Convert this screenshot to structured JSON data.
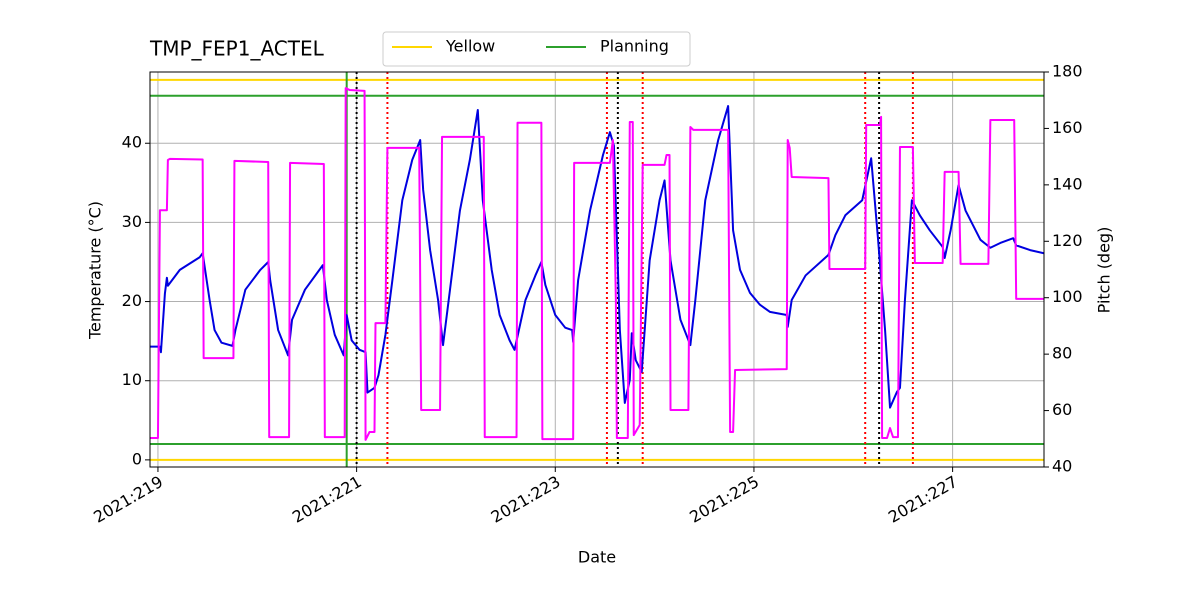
{
  "chart_data": {
    "type": "line",
    "title": "TMP_FEP1_ACTEL",
    "xlabel": "Date",
    "ylabel": "Temperature (°C)",
    "y2label": "Pitch (deg)",
    "y2color": "#ff00ff",
    "xlim": [
      218.92,
      227.92
    ],
    "xticks": [
      {
        "value": 219,
        "label": "2021:219"
      },
      {
        "value": 221,
        "label": "2021:221"
      },
      {
        "value": 223,
        "label": "2021:223"
      },
      {
        "value": 225,
        "label": "2021:225"
      },
      {
        "value": 227,
        "label": "2021:227"
      }
    ],
    "ylim": [
      -0.9,
      49
    ],
    "yticks": [
      0,
      10,
      20,
      30,
      40
    ],
    "y2lim": [
      40,
      180
    ],
    "y2ticks": [
      40,
      60,
      80,
      100,
      120,
      140,
      160,
      180
    ],
    "grid": true,
    "legend": "above",
    "series": [
      {
        "color": "#0000e0",
        "axis": "y",
        "x": [
          218.92,
          219.02,
          219.03,
          219.07,
          219.09,
          219.1,
          219.22,
          219.42,
          219.45,
          219.52,
          219.57,
          219.64,
          219.75,
          219.78,
          219.88,
          220.03,
          220.11,
          220.13,
          220.21,
          220.31,
          220.35,
          220.48,
          220.66,
          220.7,
          220.78,
          220.87,
          220.9,
          220.95,
          221.03,
          221.09,
          221.11,
          221.18,
          221.22,
          221.29,
          221.36,
          221.46,
          221.56,
          221.64,
          221.67,
          221.74,
          221.82,
          221.87,
          221.94,
          222.04,
          222.14,
          222.22,
          222.27,
          222.36,
          222.44,
          222.54,
          222.59,
          222.7,
          222.8,
          222.86,
          222.9,
          223.0,
          223.1,
          223.17,
          223.18,
          223.23,
          223.35,
          223.48,
          223.55,
          223.59,
          223.65,
          223.7,
          223.75,
          223.77,
          223.81,
          223.87,
          223.95,
          224.05,
          224.1,
          224.16,
          224.26,
          224.36,
          224.41,
          224.51,
          224.64,
          224.74,
          224.79,
          224.86,
          224.96,
          225.06,
          225.16,
          225.33,
          225.34,
          225.38,
          225.52,
          225.75,
          225.82,
          225.92,
          226.09,
          226.18,
          226.25,
          226.32,
          226.37,
          226.44,
          226.47,
          226.52,
          226.59,
          226.67,
          226.77,
          226.9,
          226.92,
          226.98,
          227.06,
          227.13,
          227.28,
          227.38,
          227.48,
          227.61,
          227.64,
          227.78,
          227.92
        ],
        "values": [
          14.3,
          14.3,
          13.6,
          21,
          23,
          22,
          24,
          25.6,
          26.1,
          20.2,
          16.4,
          14.8,
          14.4,
          16.4,
          21.5,
          24,
          25,
          22.7,
          16.4,
          13.2,
          17.7,
          21.5,
          24.6,
          20.2,
          15.8,
          13.2,
          18.3,
          15.1,
          13.9,
          13.6,
          8.5,
          9.1,
          10.7,
          15.8,
          22.7,
          32.8,
          37.9,
          40.4,
          34.1,
          26.5,
          20.2,
          14.5,
          21.5,
          31.5,
          37.9,
          44.2,
          32.8,
          24,
          18.3,
          15.1,
          13.9,
          20.2,
          23.3,
          25,
          22.1,
          18.3,
          16.7,
          16.4,
          14.9,
          22.7,
          31.5,
          38.5,
          41.4,
          39.7,
          16.4,
          7.2,
          10.1,
          16,
          12.6,
          11.1,
          25.2,
          32.8,
          35.3,
          25.2,
          17.7,
          14.5,
          20.2,
          32.8,
          40.4,
          44.7,
          29,
          24,
          21.1,
          19.6,
          18.7,
          18.3,
          16.8,
          20.2,
          23.3,
          25.9,
          28.4,
          30.9,
          32.8,
          38.1,
          27.8,
          16.4,
          6.6,
          8.6,
          9.1,
          20.2,
          32.8,
          30.9,
          29,
          26.9,
          25.5,
          29,
          34.7,
          31.5,
          27.8,
          26.8,
          27.4,
          28,
          27.1,
          26.5,
          26.1
        ]
      },
      {
        "color": "#ff00ff",
        "axis": "y2",
        "x": [
          218.92,
          219.0,
          219.02,
          219.09,
          219.1,
          219.12,
          219.45,
          219.46,
          219.76,
          219.77,
          220.11,
          220.12,
          220.32,
          220.33,
          220.67,
          220.68,
          220.88,
          220.89,
          220.93,
          221.08,
          221.09,
          221.13,
          221.18,
          221.19,
          221.29,
          221.31,
          221.63,
          221.65,
          221.84,
          221.86,
          222.28,
          222.29,
          222.61,
          222.62,
          222.86,
          222.87,
          223.18,
          223.19,
          223.55,
          223.58,
          223.61,
          223.62,
          223.73,
          223.75,
          223.78,
          223.79,
          223.85,
          223.88,
          224.1,
          224.12,
          224.15,
          224.16,
          224.34,
          224.36,
          224.39,
          224.74,
          224.76,
          224.79,
          224.81,
          225.33,
          225.34,
          225.36,
          225.38,
          225.75,
          225.76,
          226.12,
          226.13,
          226.27,
          226.28,
          226.29,
          226.34,
          226.37,
          226.4,
          226.45,
          226.47,
          226.6,
          226.62,
          226.9,
          226.92,
          227.06,
          227.08,
          227.36,
          227.38,
          227.62,
          227.64,
          227.92
        ],
        "values": [
          50.3,
          50.3,
          131,
          131,
          148.8,
          149.2,
          149,
          78.6,
          78.6,
          148.5,
          148.1,
          50.6,
          50.6,
          147.8,
          147.4,
          50.6,
          50.6,
          174.3,
          173.6,
          173.3,
          49.6,
          52.4,
          52.4,
          91,
          91,
          153.1,
          153.1,
          60.2,
          60.2,
          157,
          157,
          50.6,
          50.6,
          162,
          162,
          49.9,
          49.9,
          147.8,
          147.8,
          155.9,
          99.2,
          50.3,
          50.3,
          162.3,
          162.3,
          51.3,
          54.9,
          147.1,
          147.1,
          150.6,
          150.6,
          60.2,
          60.2,
          160.5,
          159.5,
          159.5,
          52.4,
          52.4,
          74.4,
          74.7,
          155.9,
          153.1,
          142.8,
          142.4,
          110.2,
          110.2,
          161.2,
          161.2,
          164.1,
          50.3,
          50.3,
          53.8,
          50.6,
          50.6,
          153.4,
          153.4,
          112.3,
          112.3,
          144.6,
          144.6,
          112,
          112,
          163,
          163,
          99.6,
          99.6
        ]
      }
    ],
    "hlines": [
      {
        "name": "Yellow",
        "color": "#ffd700",
        "values": [
          0,
          48
        ]
      },
      {
        "name": "Planning",
        "color": "#2ca02c",
        "values": [
          2,
          46
        ]
      }
    ],
    "vlines": [
      {
        "color": "#2ca02c",
        "style": "solid",
        "x": [
          220.9
        ]
      },
      {
        "color": "#000000",
        "style": "dotted",
        "x": [
          221.0,
          223.63,
          226.26
        ]
      },
      {
        "color": "#ff0000",
        "style": "dotted",
        "x": [
          221.31,
          223.52,
          223.88,
          226.12,
          226.6
        ]
      }
    ]
  }
}
